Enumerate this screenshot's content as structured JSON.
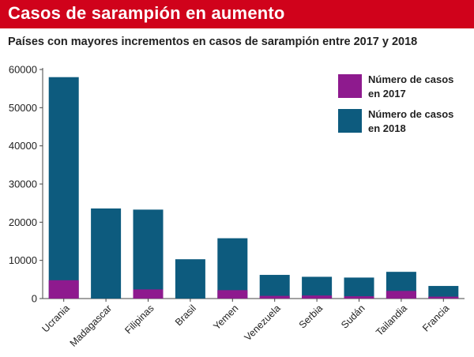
{
  "header": {
    "title": "Casos de sarampión en aumento",
    "subtitle": "Países con mayores incrementos en casos de sarampión entre 2017 y 2018"
  },
  "colors": {
    "banner": "#d0021b",
    "series_2017": "#8e1a8e",
    "series_2018": "#0d5b7e",
    "axis": "#444444"
  },
  "chart_data": {
    "type": "bar",
    "title": "Casos de sarampión en aumento",
    "subtitle": "Países con mayores incrementos en casos de sarampión entre 2017 y 2018",
    "xlabel": "",
    "ylabel": "",
    "ylim": [
      0,
      60000
    ],
    "yticks": [
      "0",
      "10000",
      "20000",
      "30000",
      "40000",
      "50000",
      "60000"
    ],
    "grid": false,
    "legend_position": "top-right",
    "categories": [
      "Ucrania",
      "Madagascar",
      "Filipinas",
      "Brasil",
      "Yemen",
      "Venezuela",
      "Serbia",
      "Sudán",
      "Tailandia",
      "Francia"
    ],
    "series": [
      {
        "name": "Número de casos en 2017",
        "legend_lines": [
          "Número de casos",
          "en 2017"
        ],
        "values": [
          4800,
          0,
          2400,
          0,
          2200,
          700,
          800,
          600,
          2000,
          500
        ]
      },
      {
        "name": "Número de casos en 2018",
        "legend_lines": [
          "Número de casos",
          "en 2018"
        ],
        "values": [
          58000,
          23600,
          23300,
          10300,
          15800,
          6200,
          5700,
          5500,
          7000,
          3300
        ]
      }
    ]
  }
}
